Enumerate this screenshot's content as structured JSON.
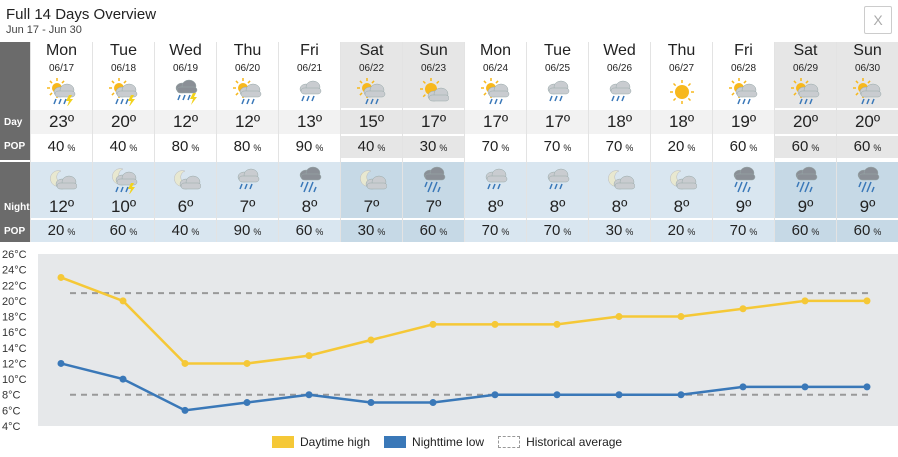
{
  "header": {
    "title": "Full 14 Days Overview",
    "subtitle": "Jun 17 - Jun 30",
    "close_label": "X"
  },
  "row_labels": {
    "day": "Day",
    "pop": "POP",
    "night": "Night",
    "pop_night": "POP"
  },
  "pop_unit": "%",
  "days": [
    {
      "name": "Mon",
      "date": "06/17",
      "day_icon": "sun-thunder-rain-icon",
      "day_temp": "23º",
      "day_pop": "40",
      "night_icon": "moon-cloud-icon",
      "night_temp": "12º",
      "night_pop": "20",
      "weekend": false
    },
    {
      "name": "Tue",
      "date": "06/18",
      "day_icon": "sun-thunder-rain-icon",
      "day_temp": "20º",
      "day_pop": "40",
      "night_icon": "moon-thunder-rain-icon",
      "night_temp": "10º",
      "night_pop": "60",
      "weekend": false
    },
    {
      "name": "Wed",
      "date": "06/19",
      "day_icon": "cloud-thunder-rain-icon",
      "day_temp": "12º",
      "day_pop": "80",
      "night_icon": "moon-cloud-icon",
      "night_temp": "6º",
      "night_pop": "40",
      "weekend": false
    },
    {
      "name": "Thu",
      "date": "06/20",
      "day_icon": "sun-rain-icon",
      "day_temp": "12º",
      "day_pop": "80",
      "night_icon": "cloud-rain-icon",
      "night_temp": "7º",
      "night_pop": "90",
      "weekend": false
    },
    {
      "name": "Fri",
      "date": "06/21",
      "day_icon": "cloud-rain-icon",
      "day_temp": "13º",
      "day_pop": "90",
      "night_icon": "cloud-heavy-rain-icon",
      "night_temp": "8º",
      "night_pop": "60",
      "weekend": false
    },
    {
      "name": "Sat",
      "date": "06/22",
      "day_icon": "sun-rain-icon",
      "day_temp": "15º",
      "day_pop": "40",
      "night_icon": "moon-cloud-icon",
      "night_temp": "7º",
      "night_pop": "30",
      "weekend": true
    },
    {
      "name": "Sun",
      "date": "06/23",
      "day_icon": "sun-cloud-icon",
      "day_temp": "17º",
      "day_pop": "30",
      "night_icon": "cloud-heavy-rain-icon",
      "night_temp": "7º",
      "night_pop": "60",
      "weekend": true
    },
    {
      "name": "Mon",
      "date": "06/24",
      "day_icon": "sun-rain-icon",
      "day_temp": "17º",
      "day_pop": "70",
      "night_icon": "cloud-rain-icon",
      "night_temp": "8º",
      "night_pop": "70",
      "weekend": false
    },
    {
      "name": "Tue",
      "date": "06/25",
      "day_icon": "cloud-rain-icon",
      "day_temp": "17º",
      "day_pop": "70",
      "night_icon": "cloud-rain-icon",
      "night_temp": "8º",
      "night_pop": "70",
      "weekend": false
    },
    {
      "name": "Wed",
      "date": "06/26",
      "day_icon": "cloud-rain-icon",
      "day_temp": "18º",
      "day_pop": "70",
      "night_icon": "moon-cloud-icon",
      "night_temp": "8º",
      "night_pop": "30",
      "weekend": false
    },
    {
      "name": "Thu",
      "date": "06/27",
      "day_icon": "sun-icon",
      "day_temp": "18º",
      "day_pop": "20",
      "night_icon": "moon-cloud-icon",
      "night_temp": "8º",
      "night_pop": "20",
      "weekend": false
    },
    {
      "name": "Fri",
      "date": "06/28",
      "day_icon": "sun-rain-icon",
      "day_temp": "19º",
      "day_pop": "60",
      "night_icon": "cloud-heavy-rain-icon",
      "night_temp": "9º",
      "night_pop": "70",
      "weekend": false
    },
    {
      "name": "Sat",
      "date": "06/29",
      "day_icon": "sun-rain-icon",
      "day_temp": "20º",
      "day_pop": "60",
      "night_icon": "cloud-heavy-rain-icon",
      "night_temp": "9º",
      "night_pop": "60",
      "weekend": true
    },
    {
      "name": "Sun",
      "date": "06/30",
      "day_icon": "sun-rain-icon",
      "day_temp": "20º",
      "day_pop": "60",
      "night_icon": "cloud-heavy-rain-icon",
      "night_temp": "9º",
      "night_pop": "60",
      "weekend": true
    }
  ],
  "colors": {
    "label_bg": "#6b6b6b",
    "day_bg": "#ffffff",
    "day_temp_bg": "#f2f2f2",
    "night_bg": "#d9e6f0",
    "night_weekend_bg": "#c6d9e6",
    "day_weekend_bg": "#e6e6e6",
    "chart_bg": "#e6e8ea",
    "day_line": "#f5c837",
    "night_line": "#3a78b8",
    "avg_line": "#999999"
  },
  "chart_data": {
    "type": "line",
    "x": [
      "06/17",
      "06/18",
      "06/19",
      "06/20",
      "06/21",
      "06/22",
      "06/23",
      "06/24",
      "06/25",
      "06/26",
      "06/27",
      "06/28",
      "06/29",
      "06/30"
    ],
    "series": [
      {
        "name": "Daytime high",
        "values": [
          23,
          20,
          12,
          12,
          13,
          15,
          17,
          17,
          17,
          18,
          18,
          19,
          20,
          20
        ],
        "color": "#f5c837"
      },
      {
        "name": "Nighttime low",
        "values": [
          12,
          10,
          6,
          7,
          8,
          7,
          7,
          8,
          8,
          8,
          8,
          9,
          9,
          9
        ],
        "color": "#3a78b8"
      }
    ],
    "reference_lines": [
      {
        "name": "Historical average",
        "value": 21,
        "style": "dashed"
      },
      {
        "name": "Historical average",
        "value": 8,
        "style": "dashed"
      }
    ],
    "y_ticks": [
      "4°C",
      "6°C",
      "8°C",
      "10°C",
      "12°C",
      "14°C",
      "16°C",
      "18°C",
      "20°C",
      "22°C",
      "24°C",
      "26°C"
    ],
    "ylim": [
      4,
      26
    ],
    "grid": false,
    "legend_position": "bottom"
  },
  "legend": {
    "day_label": "Daytime high",
    "night_label": "Nighttime low",
    "avg_label": "Historical average"
  }
}
